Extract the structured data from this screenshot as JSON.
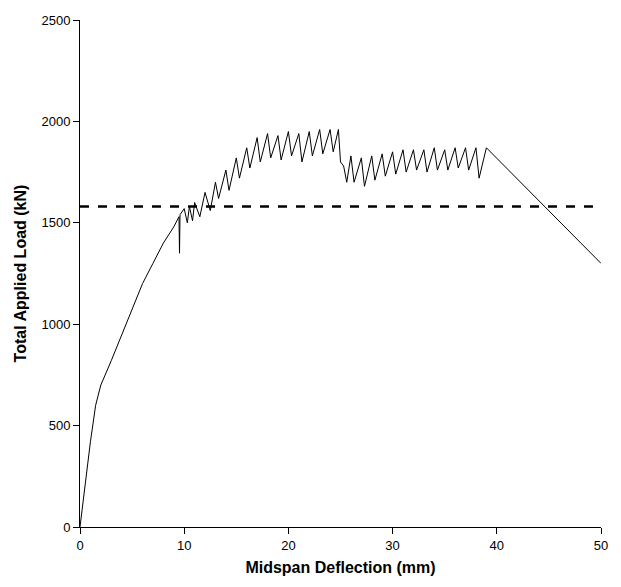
{
  "chart_data": {
    "type": "line",
    "x_label": "Midspan Deflection (mm)",
    "y_label": "Total Applied Load (kN)",
    "xlim": [
      0,
      50
    ],
    "xticks": [
      0,
      10,
      20,
      30,
      40,
      50
    ],
    "ylim": [
      0,
      2500
    ],
    "yticks": [
      0,
      500,
      1000,
      1500,
      2000,
      2500
    ],
    "grid": false,
    "series": [
      {
        "color": "#000000",
        "line_style": "solid",
        "x": [
          0,
          0.5,
          1,
          1.5,
          2,
          3,
          4,
          5,
          6,
          7,
          8,
          9,
          9.5,
          9.55,
          9.6,
          10,
          10.3,
          10.5,
          10.8,
          11,
          11.5,
          12,
          12.5,
          13,
          13.3,
          14,
          14.3,
          15,
          15.3,
          16,
          16.3,
          17,
          17.3,
          18,
          18.3,
          19,
          19.3,
          20,
          20.3,
          21,
          21.3,
          22,
          22.3,
          23,
          23.3,
          24,
          24.3,
          24.8,
          25,
          25.3,
          25.6,
          26,
          26.3,
          27,
          27.3,
          28,
          28.3,
          29,
          29.3,
          30,
          30.3,
          31,
          31.3,
          32,
          32.3,
          33,
          33.3,
          34,
          34.3,
          35,
          35.3,
          36,
          36.3,
          37,
          37.3,
          38,
          38.3,
          39,
          50
        ],
        "values": [
          0,
          220,
          420,
          600,
          700,
          820,
          950,
          1080,
          1200,
          1300,
          1400,
          1480,
          1530,
          1350,
          1540,
          1570,
          1500,
          1580,
          1510,
          1600,
          1530,
          1650,
          1560,
          1700,
          1620,
          1760,
          1660,
          1820,
          1720,
          1870,
          1770,
          1920,
          1800,
          1940,
          1820,
          1930,
          1810,
          1950,
          1830,
          1940,
          1800,
          1950,
          1830,
          1960,
          1840,
          1960,
          1850,
          1960,
          1800,
          1780,
          1700,
          1830,
          1700,
          1820,
          1680,
          1830,
          1710,
          1840,
          1730,
          1850,
          1740,
          1860,
          1750,
          1860,
          1760,
          1860,
          1750,
          1870,
          1760,
          1860,
          1760,
          1870,
          1770,
          1870,
          1760,
          1870,
          1720,
          1870,
          1300
        ]
      },
      {
        "color": "#000000",
        "line_style": "dash",
        "x": [
          0,
          50
        ],
        "values": [
          1580,
          1580
        ]
      }
    ]
  }
}
